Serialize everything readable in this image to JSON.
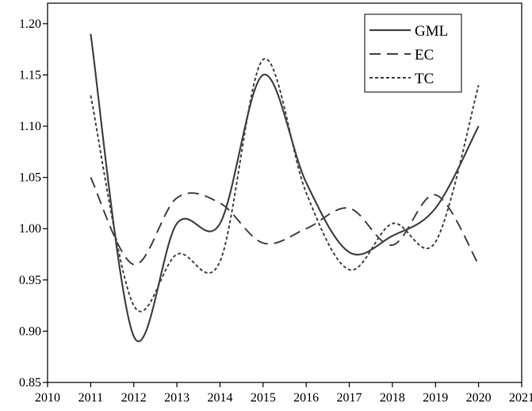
{
  "chart_data": {
    "type": "line",
    "title": "",
    "xlabel": "",
    "ylabel": "",
    "xlim": [
      2010,
      2021
    ],
    "ylim": [
      0.85,
      1.22
    ],
    "x_ticks": [
      2010,
      2011,
      2012,
      2013,
      2014,
      2015,
      2016,
      2017,
      2018,
      2019,
      2020,
      2021
    ],
    "y_ticks": [
      0.85,
      0.9,
      0.95,
      1.0,
      1.05,
      1.1,
      1.15,
      1.2
    ],
    "x": [
      2011,
      2012,
      2013,
      2014,
      2015,
      2016,
      2017,
      2018,
      2019,
      2020
    ],
    "legend_position": "top-right",
    "grid": false,
    "series": [
      {
        "name": "GML",
        "style": "solid",
        "color": "#444444",
        "values": [
          1.19,
          0.895,
          1.005,
          1.005,
          1.15,
          1.045,
          0.977,
          0.993,
          1.02,
          1.1
        ]
      },
      {
        "name": "EC",
        "style": "dashed",
        "color": "#444444",
        "values": [
          1.05,
          0.965,
          1.03,
          1.025,
          0.986,
          1.0,
          1.02,
          0.984,
          1.033,
          0.965
        ]
      },
      {
        "name": "TC",
        "style": "dotted",
        "color": "#444444",
        "values": [
          1.13,
          0.925,
          0.975,
          0.968,
          1.165,
          1.035,
          0.96,
          1.005,
          0.987,
          1.14
        ]
      }
    ]
  }
}
